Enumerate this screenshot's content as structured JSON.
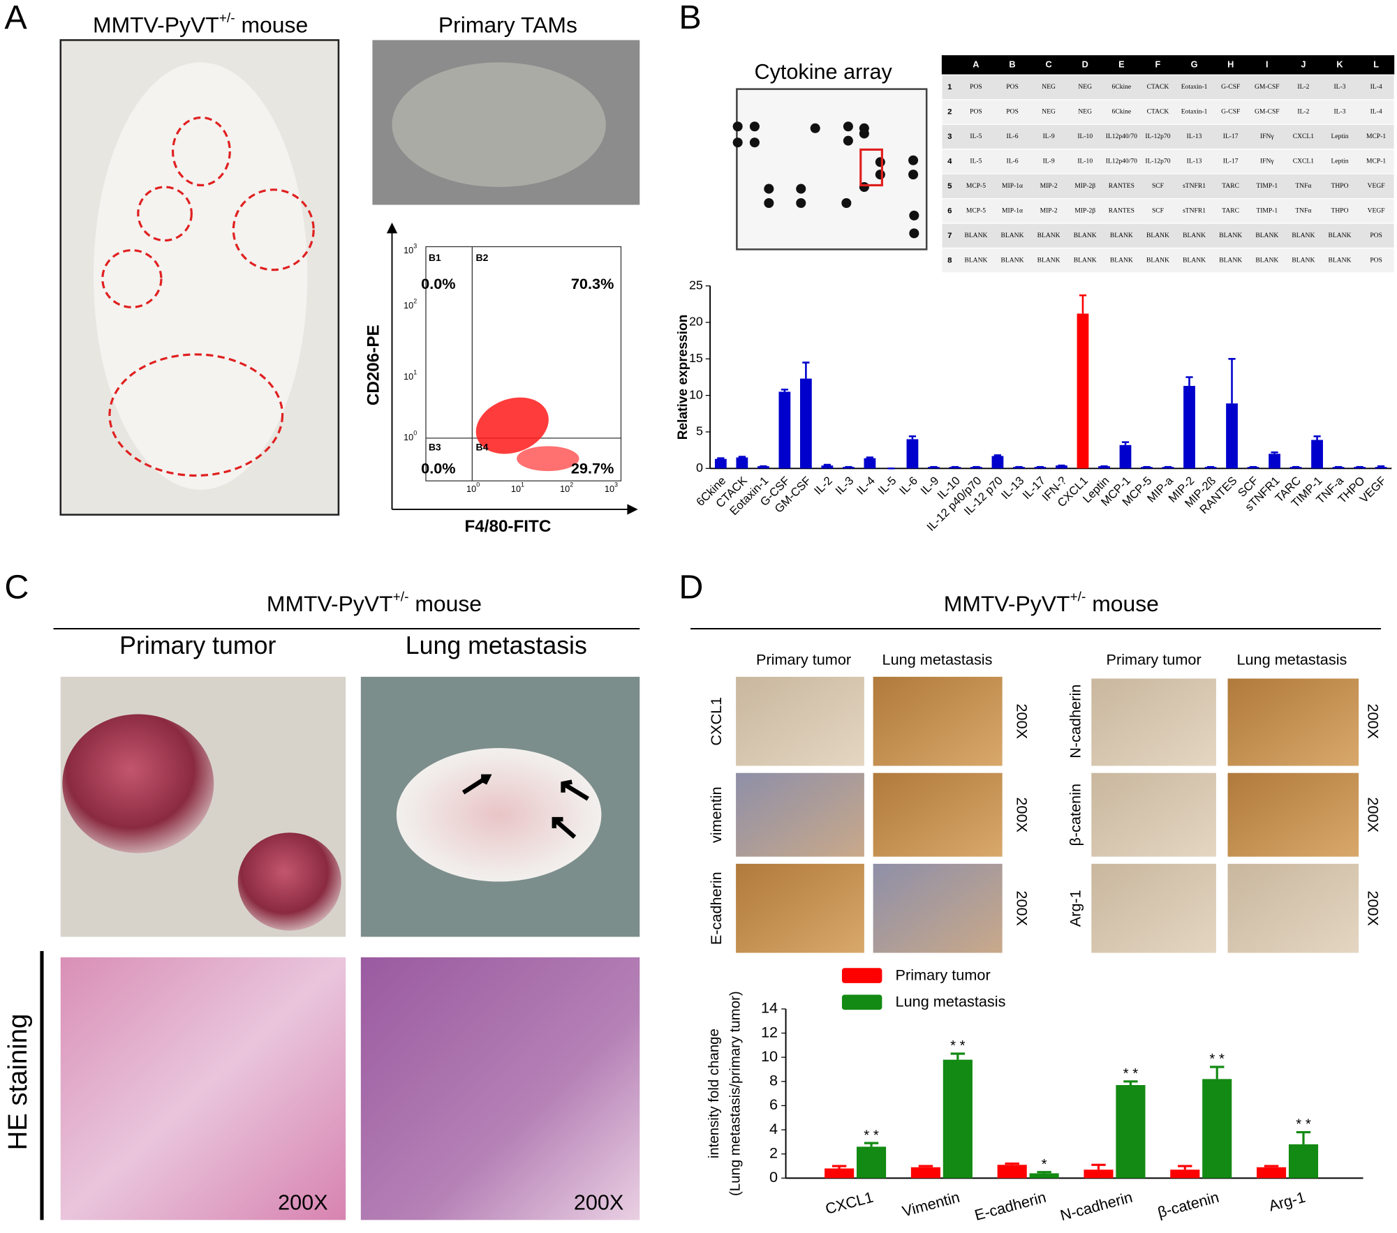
{
  "panel_a": {
    "label": "A",
    "mouse_title": {
      "main": "MMTV-PyVT",
      "sup": "+/-",
      "rest": " mouse"
    },
    "tams_title": "Primary TAMs",
    "flow": {
      "ylabel": "CD206-PE",
      "xlabel": "F4/80-FITC",
      "tick_base": "10",
      "tick_exponents": [
        "0",
        "1",
        "2",
        "3"
      ],
      "quadrants": [
        {
          "name": "B1",
          "value": "0.0%"
        },
        {
          "name": "B2",
          "value": "70.3%"
        },
        {
          "name": "B3",
          "value": "0.0%"
        },
        {
          "name": "B4",
          "value": "29.7%"
        }
      ]
    }
  },
  "panel_b": {
    "label": "B",
    "array_title": "Cytokine array",
    "table": {
      "columns": [
        "A",
        "B",
        "C",
        "D",
        "E",
        "F",
        "G",
        "H",
        "I",
        "J",
        "K",
        "L"
      ],
      "rows": [
        {
          "n": "1",
          "cells": [
            "POS",
            "POS",
            "NEG",
            "NEG",
            "6Ckine",
            "CTACK",
            "Eotaxin-1",
            "G-CSF",
            "GM-CSF",
            "IL-2",
            "IL-3",
            "IL-4"
          ]
        },
        {
          "n": "2",
          "cells": [
            "POS",
            "POS",
            "NEG",
            "NEG",
            "6Ckine",
            "CTACK",
            "Eotaxin-1",
            "G-CSF",
            "GM-CSF",
            "IL-2",
            "IL-3",
            "IL-4"
          ]
        },
        {
          "n": "3",
          "cells": [
            "IL-5",
            "IL-6",
            "IL-9",
            "IL-10",
            "IL12p40/70",
            "IL-12p70",
            "IL-13",
            "IL-17",
            "IFNγ",
            "CXCL1",
            "Leptin",
            "MCP-1"
          ]
        },
        {
          "n": "4",
          "cells": [
            "IL-5",
            "IL-6",
            "IL-9",
            "IL-10",
            "IL12p40/70",
            "IL-12p70",
            "IL-13",
            "IL-17",
            "IFNγ",
            "CXCL1",
            "Leptin",
            "MCP-1"
          ]
        },
        {
          "n": "5",
          "cells": [
            "MCP-5",
            "MIP-1α",
            "MIP-2",
            "MIP-2β",
            "RANTES",
            "SCF",
            "sTNFR1",
            "TARC",
            "TIMP-1",
            "TNFα",
            "THPO",
            "VEGF"
          ]
        },
        {
          "n": "6",
          "cells": [
            "MCP-5",
            "MIP-1α",
            "MIP-2",
            "MIP-2β",
            "RANTES",
            "SCF",
            "sTNFR1",
            "TARC",
            "TIMP-1",
            "TNFα",
            "THPO",
            "VEGF"
          ]
        },
        {
          "n": "7",
          "cells": [
            "BLANK",
            "BLANK",
            "BLANK",
            "BLANK",
            "BLANK",
            "BLANK",
            "BLANK",
            "BLANK",
            "BLANK",
            "BLANK",
            "BLANK",
            "POS"
          ]
        },
        {
          "n": "8",
          "cells": [
            "BLANK",
            "BLANK",
            "BLANK",
            "BLANK",
            "BLANK",
            "BLANK",
            "BLANK",
            "BLANK",
            "BLANK",
            "BLANK",
            "BLANK",
            "POS"
          ]
        }
      ]
    }
  },
  "panel_c": {
    "label": "C",
    "title": {
      "main": "MMTV-PyVT",
      "sup": "+/-",
      "rest": " mouse"
    },
    "col_titles": [
      "Primary tumor",
      "Lung metastasis"
    ],
    "row_label": "HE staining",
    "magnifications": [
      "200X",
      "200X"
    ]
  },
  "panel_d": {
    "label": "D",
    "title": {
      "main": "MMTV-PyVT",
      "sup": "+/-",
      "rest": " mouse"
    },
    "groups": [
      {
        "col_titles": [
          "Primary tumor",
          "Lung metastasis"
        ],
        "rows": [
          "CXCL1",
          "vimentin",
          "E-cadherin"
        ],
        "magnifications": [
          "200X",
          "200X",
          "200X"
        ]
      },
      {
        "col_titles": [
          "Primary tumor",
          "Lung metastasis"
        ],
        "rows": [
          "N-cadherin",
          "β-catenin",
          "Arg-1"
        ],
        "magnifications": [
          "200X",
          "200X",
          "200X"
        ]
      }
    ]
  },
  "chart_data": [
    {
      "type": "bar",
      "ylabel": "Relative expression",
      "categories": [
        "6Ckine",
        "CTACK",
        "Eotaxin-1",
        "G-CSF",
        "GM-CSF",
        "IL-2",
        "IL-3",
        "IL-4",
        "IL-5",
        "IL-6",
        "IL-9",
        "IL-10",
        "IL-12 p40/p70",
        "IL-12 p70",
        "IL-13",
        "IL-17",
        "IFN-?",
        "CXCL1",
        "Leptin",
        "MCP-1",
        "MCP-5",
        "MIP-a",
        "MIP-2",
        "MIP-2ß",
        "RANTES",
        "SCF",
        "sTNFR1",
        "TARC",
        "TIMP-1",
        "TNF-a",
        "THPO",
        "VEGF"
      ],
      "values": [
        1.3,
        1.5,
        0.3,
        10.5,
        12.3,
        0.4,
        0.2,
        1.4,
        0,
        4.0,
        0.2,
        0.2,
        0.2,
        1.7,
        0.2,
        0.2,
        0.4,
        21.2,
        0.3,
        3.2,
        0.2,
        0.2,
        11.3,
        0.2,
        8.9,
        0.2,
        2.0,
        0.2,
        3.9,
        0.2,
        0.2,
        0.2
      ],
      "errors": [
        0.1,
        0.1,
        0,
        0.3,
        2.2,
        0.1,
        0,
        0.1,
        0,
        0.4,
        0,
        0,
        0,
        0.1,
        0,
        0,
        0,
        2.5,
        0,
        0.4,
        0,
        0,
        1.2,
        0,
        6.1,
        0,
        0.2,
        0,
        0.5,
        0,
        0,
        0.1
      ],
      "colors": [
        "#0000cc",
        "#0000cc",
        "#0000cc",
        "#0000cc",
        "#0000cc",
        "#0000cc",
        "#0000cc",
        "#0000cc",
        "#0000cc",
        "#0000cc",
        "#0000cc",
        "#0000cc",
        "#0000cc",
        "#0000cc",
        "#0000cc",
        "#0000cc",
        "#0000cc",
        "#ff0000",
        "#0000cc",
        "#0000cc",
        "#0000cc",
        "#0000cc",
        "#0000cc",
        "#0000cc",
        "#0000cc",
        "#0000cc",
        "#0000cc",
        "#0000cc",
        "#0000cc",
        "#0000cc",
        "#0000cc",
        "#0000cc"
      ],
      "ylim": [
        0,
        25
      ],
      "yticks": [
        0,
        5,
        10,
        15,
        20,
        25
      ]
    },
    {
      "type": "grouped_bar",
      "ylabel": [
        "intensity fold change",
        "(Lung metastasis/primary tumor)"
      ],
      "categories": [
        "CXCL1",
        "Vimentin",
        "E-cadherin",
        "N-cadherin",
        "β-catenin",
        "Arg-1"
      ],
      "series": [
        {
          "name": "Primary tumor",
          "color": "#ff0000",
          "values": [
            0.8,
            0.9,
            1.1,
            0.7,
            0.7,
            0.9
          ],
          "errors": [
            0.2,
            0.1,
            0.1,
            0.4,
            0.3,
            0.1
          ]
        },
        {
          "name": "Lung metastasis",
          "color": "#138a13",
          "values": [
            2.6,
            9.8,
            0.4,
            7.7,
            8.2,
            2.8
          ],
          "errors": [
            0.3,
            0.5,
            0.1,
            0.3,
            1.0,
            1.0
          ],
          "annotations": [
            "* *",
            "* *",
            "*",
            "* *",
            "* *",
            "* *"
          ]
        }
      ],
      "ylim": [
        0,
        14
      ],
      "yticks": [
        0,
        2,
        4,
        6,
        8,
        10,
        12,
        14
      ]
    }
  ]
}
